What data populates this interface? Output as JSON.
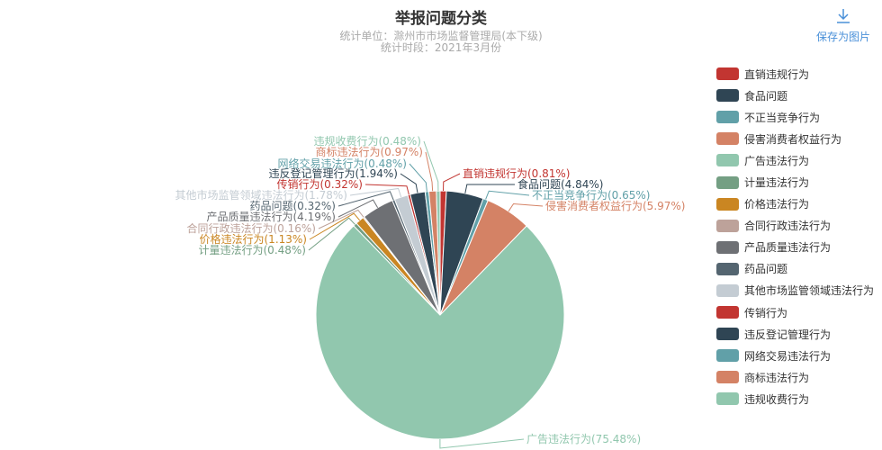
{
  "title": "举报问题分类",
  "subtitle_line1": "统计单位：滁州市市场监督管理局(本下级)",
  "subtitle_line2": "统计时段：2021年3月份",
  "toolbox": {
    "save_label": "保存为图片",
    "icon": "download-icon"
  },
  "chart_data": {
    "type": "pie",
    "title": "举报问题分类",
    "legend_position": "right",
    "slices": [
      {
        "name": "直销违规行为",
        "value": 0.81,
        "label": "直销违规行为(0.81%)",
        "color": "#c23531"
      },
      {
        "name": "食品问题",
        "value": 4.84,
        "label": "食品问题(4.84%)",
        "color": "#2f4554"
      },
      {
        "name": "不正当竞争行为",
        "value": 0.65,
        "label": "不正当竞争行为(0.65%)",
        "color": "#61a0a8"
      },
      {
        "name": "侵害消费者权益行为",
        "value": 5.97,
        "label": "侵害消费者权益行为(5.97%)",
        "color": "#d48265"
      },
      {
        "name": "广告违法行为",
        "value": 75.48,
        "label": "广告违法行为(75.48%)",
        "color": "#91c7ae"
      },
      {
        "name": "计量违法行为",
        "value": 0.48,
        "label": "计量违法行为(0.48%)",
        "color": "#749f83"
      },
      {
        "name": "价格违法行为",
        "value": 1.13,
        "label": "价格违法行为(1.13%)",
        "color": "#ca8622"
      },
      {
        "name": "合同行政违法行为",
        "value": 0.16,
        "label": "合同行政违法行为(0.16%)",
        "color": "#bda29a"
      },
      {
        "name": "产品质量违法行为",
        "value": 4.19,
        "label": "产品质量违法行为(4.19%)",
        "color": "#6e7074"
      },
      {
        "name": "药品问题",
        "value": 0.32,
        "label": "药品问题(0.32%)",
        "color": "#546570"
      },
      {
        "name": "其他市场监管领域违法行为",
        "value": 1.78,
        "label": "其他市场监管领域违法行为(1.78%)",
        "color": "#c4ccd3"
      },
      {
        "name": "传销行为",
        "value": 0.32,
        "label": "传销行为(0.32%)",
        "color": "#c23531"
      },
      {
        "name": "违反登记管理行为",
        "value": 1.94,
        "label": "违反登记管理行为(1.94%)",
        "color": "#2f4554"
      },
      {
        "name": "网络交易违法行为",
        "value": 0.48,
        "label": "网络交易违法行为(0.48%)",
        "color": "#61a0a8"
      },
      {
        "name": "商标违法行为",
        "value": 0.97,
        "label": "商标违法行为(0.97%)",
        "color": "#d48265"
      },
      {
        "name": "违规收费行为",
        "value": 0.48,
        "label": "违规收费行为(0.48%)",
        "color": "#91c7ae"
      }
    ]
  }
}
